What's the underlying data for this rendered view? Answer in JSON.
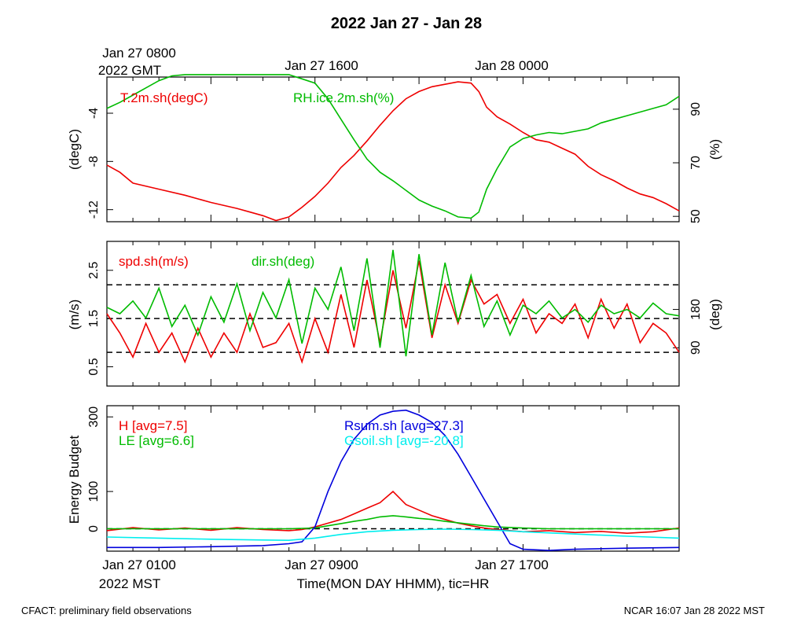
{
  "title": "2022 Jan 27 - Jan 28",
  "top_axis": {
    "labels": [
      {
        "line1": "Jan 27 0800",
        "line2": "2022 GMT"
      },
      {
        "line1": "Jan 27 1600",
        "line2": ""
      },
      {
        "line1": "Jan 28 0000",
        "line2": ""
      }
    ]
  },
  "bottom_axis": {
    "labels": [
      {
        "line1": "Jan 27 0100",
        "line2": "2022 MST"
      },
      {
        "line1": "Jan 27 0900",
        "line2": ""
      },
      {
        "line1": "Jan 27 1700",
        "line2": ""
      }
    ],
    "xlabel": "Time(MON DAY HHMM), tic=HR"
  },
  "footer": {
    "left": "CFACT: preliminary field observations",
    "right": "NCAR 16:07 Jan 28 2022 MST"
  },
  "colors": {
    "red": "#ee0000",
    "green": "#00bb00",
    "blue": "#0000dd",
    "cyan": "#00eeee"
  },
  "chart_data": [
    {
      "type": "line",
      "xlim": [
        0,
        22
      ],
      "ylabel_left": "(degC)",
      "ylabel_right": "(%)",
      "ylim_left": [
        -13,
        -1
      ],
      "ylim_right": [
        48,
        102
      ],
      "yticks_left": [
        -12,
        -8,
        -4
      ],
      "yticks_right": [
        50,
        70,
        90
      ],
      "grid": false,
      "series": [
        {
          "name": "T.2m.sh(degC)",
          "color": "red",
          "axis": "left",
          "x": [
            0,
            0.5,
            1,
            2,
            3,
            4,
            5,
            5.5,
            6,
            6.5,
            7,
            7.5,
            8,
            8.5,
            9,
            9.5,
            10,
            10.5,
            11,
            11.5,
            12,
            12.5,
            13,
            13.5,
            14,
            14.3,
            14.6,
            15,
            15.5,
            16,
            16.5,
            17,
            17.5,
            18,
            18.5,
            19,
            19.5,
            20,
            20.5,
            21,
            21.5,
            22
          ],
          "y": [
            -8.3,
            -8.9,
            -9.8,
            -10.3,
            -10.8,
            -11.4,
            -11.9,
            -12.2,
            -12.5,
            -12.9,
            -12.6,
            -11.8,
            -10.9,
            -9.8,
            -8.5,
            -7.5,
            -6.3,
            -5.0,
            -3.8,
            -2.8,
            -2.2,
            -1.8,
            -1.6,
            -1.4,
            -1.5,
            -2.2,
            -3.5,
            -4.3,
            -4.9,
            -5.6,
            -6.2,
            -6.4,
            -6.9,
            -7.4,
            -8.4,
            -9.1,
            -9.6,
            -10.2,
            -10.7,
            -11.0,
            -11.5,
            -12.1
          ]
        },
        {
          "name": "RH.ice.2m.sh(%)",
          "color": "green",
          "axis": "left",
          "x": [
            0,
            0.5,
            1,
            1.5,
            2,
            2.5,
            3,
            4,
            5,
            6,
            7,
            8,
            8.5,
            9,
            9.5,
            10,
            10.5,
            11,
            11.5,
            12,
            12.5,
            13,
            13.5,
            14,
            14.3,
            14.6,
            15,
            15.5,
            16,
            16.5,
            17,
            17.5,
            18,
            18.5,
            19,
            19.5,
            20,
            20.5,
            21,
            21.5,
            22
          ],
          "y": [
            -3.6,
            -3.1,
            -2.5,
            -1.9,
            -1.3,
            -0.9,
            -0.8,
            -0.8,
            -0.8,
            -0.8,
            -0.8,
            -1.5,
            -2.8,
            -4.5,
            -6.2,
            -7.8,
            -8.9,
            -9.6,
            -10.4,
            -11.2,
            -11.7,
            -12.1,
            -12.6,
            -12.7,
            -12.2,
            -10.3,
            -8.6,
            -6.8,
            -6.1,
            -5.8,
            -5.6,
            -5.7,
            -5.5,
            -5.3,
            -4.8,
            -4.5,
            -4.2,
            -3.9,
            -3.6,
            -3.3,
            -2.6
          ]
        }
      ]
    },
    {
      "type": "line",
      "xlim": [
        0,
        22
      ],
      "ylabel_left": "(m/s)",
      "ylabel_right": "(deg)",
      "ylim_left": [
        0.1,
        3.1
      ],
      "ylim_right": [
        0,
        340
      ],
      "yticks_left": [
        0.5,
        1.5,
        2.5
      ],
      "yticks_right": [
        90,
        180
      ],
      "dashed_lines_left": [
        0.8,
        1.5,
        2.2
      ],
      "series": [
        {
          "name": "spd.sh(m/s)",
          "color": "red",
          "axis": "left",
          "x": [
            0,
            0.5,
            1,
            1.5,
            2,
            2.5,
            3,
            3.5,
            4,
            4.5,
            5,
            5.5,
            6,
            6.5,
            7,
            7.5,
            8,
            8.5,
            9,
            9.5,
            10,
            10.5,
            11,
            11.5,
            12,
            12.5,
            13,
            13.5,
            14,
            14.5,
            15,
            15.5,
            16,
            16.5,
            17,
            17.5,
            18,
            18.5,
            19,
            19.5,
            20,
            20.5,
            21,
            21.5,
            22
          ],
          "y": [
            1.6,
            1.2,
            0.7,
            1.4,
            0.8,
            1.2,
            0.6,
            1.3,
            0.7,
            1.2,
            0.8,
            1.6,
            0.9,
            1.0,
            1.4,
            0.6,
            1.5,
            0.8,
            2.0,
            0.9,
            2.3,
            1.0,
            2.5,
            1.3,
            2.7,
            1.1,
            2.2,
            1.4,
            2.3,
            1.8,
            2.0,
            1.4,
            1.9,
            1.2,
            1.6,
            1.4,
            1.8,
            1.1,
            1.9,
            1.3,
            1.8,
            1.0,
            1.4,
            1.2,
            0.8
          ]
        },
        {
          "name": "dir.sh(deg)",
          "color": "green",
          "axis": "right",
          "x": [
            0,
            0.5,
            1,
            1.5,
            2,
            2.5,
            3,
            3.5,
            4,
            4.5,
            5,
            5.5,
            6,
            6.5,
            7,
            7.5,
            8,
            8.5,
            9,
            9.5,
            10,
            10.5,
            11,
            11.5,
            12,
            12.5,
            13,
            13.5,
            14,
            14.5,
            15,
            15.5,
            16,
            16.5,
            17,
            17.5,
            18,
            18.5,
            19,
            19.5,
            20,
            20.5,
            21,
            21.5,
            22
          ],
          "y": [
            185,
            170,
            200,
            160,
            230,
            140,
            190,
            120,
            210,
            150,
            240,
            130,
            220,
            160,
            250,
            100,
            230,
            180,
            280,
            130,
            300,
            90,
            320,
            70,
            310,
            120,
            290,
            150,
            260,
            140,
            200,
            120,
            190,
            170,
            200,
            160,
            180,
            150,
            190,
            170,
            180,
            160,
            195,
            170,
            165
          ]
        }
      ]
    },
    {
      "type": "line",
      "xlim": [
        0,
        22
      ],
      "ylabel": "Energy Budget",
      "ylim": [
        -60,
        330
      ],
      "yticks": [
        0,
        100,
        300
      ],
      "dashed_lines": [
        0
      ],
      "series": [
        {
          "name": "H [avg=7.5]",
          "color": "red",
          "x": [
            0,
            1,
            2,
            3,
            4,
            5,
            6,
            7,
            7.5,
            8,
            8.5,
            9,
            9.5,
            10,
            10.5,
            11,
            11.5,
            12,
            12.5,
            13,
            13.5,
            14,
            14.5,
            15,
            16,
            17,
            18,
            19,
            20,
            21,
            22
          ],
          "y": [
            -5,
            3,
            -3,
            2,
            -4,
            3,
            -2,
            -5,
            -2,
            5,
            15,
            25,
            40,
            55,
            70,
            100,
            65,
            50,
            35,
            25,
            15,
            8,
            2,
            -2,
            -8,
            -5,
            -10,
            -7,
            -12,
            -8,
            2
          ]
        },
        {
          "name": "LE [avg=6.6]",
          "color": "green",
          "x": [
            0,
            2,
            4,
            6,
            7,
            8,
            8.5,
            9,
            9.5,
            10,
            10.5,
            11,
            11.5,
            12,
            12.5,
            13,
            13.5,
            14,
            14.5,
            15,
            16,
            17,
            18,
            20,
            22
          ],
          "y": [
            0,
            0,
            0,
            0,
            0,
            2,
            8,
            14,
            20,
            25,
            32,
            35,
            32,
            28,
            25,
            20,
            16,
            12,
            8,
            5,
            2,
            0,
            0,
            0,
            0
          ]
        },
        {
          "name": "Rsum.sh [avg=27.3]",
          "color": "blue",
          "x": [
            0,
            2,
            4,
            6,
            7,
            7.5,
            8,
            8.5,
            9,
            9.5,
            10,
            10.5,
            11,
            11.5,
            12,
            12.5,
            13,
            13.5,
            14,
            14.5,
            15,
            15.5,
            16,
            17,
            18,
            20,
            22
          ],
          "y": [
            -50,
            -50,
            -48,
            -45,
            -40,
            -35,
            5,
            100,
            180,
            240,
            280,
            305,
            315,
            318,
            305,
            285,
            250,
            200,
            140,
            80,
            20,
            -40,
            -55,
            -58,
            -55,
            -52,
            -50
          ]
        },
        {
          "name": "Gsoil.sh [avg=-20.8]",
          "color": "cyan",
          "x": [
            0,
            2,
            4,
            6,
            7,
            8,
            9,
            10,
            11,
            12,
            13,
            14,
            15,
            16,
            18,
            20,
            22
          ],
          "y": [
            -22,
            -25,
            -28,
            -30,
            -31,
            -25,
            -15,
            -8,
            -4,
            -2,
            -1,
            -2,
            -4,
            -8,
            -14,
            -20,
            -25
          ]
        }
      ]
    }
  ]
}
